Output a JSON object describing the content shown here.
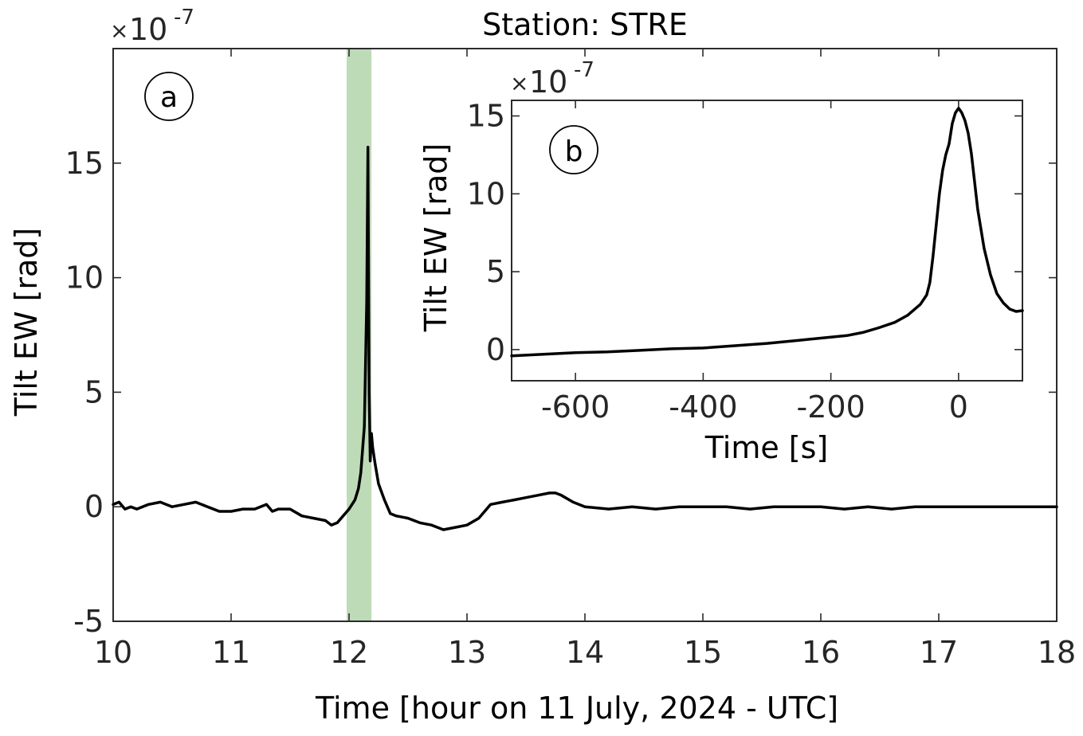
{
  "chart_data": [
    {
      "id": "a",
      "type": "line",
      "panel_label": "a",
      "title": "Station: STRE",
      "xlabel": "Time [hour on 11 July, 2024 - UTC]",
      "ylabel": "Tilt EW [rad]",
      "y_multiplier": {
        "base": "10",
        "exponent": "-7"
      },
      "xlim": [
        10,
        18
      ],
      "ylim": [
        -5,
        20
      ],
      "xticks": [
        10,
        11,
        12,
        13,
        14,
        15,
        16,
        17,
        18
      ],
      "yticks": [
        -5,
        0,
        5,
        10,
        15
      ],
      "grid": false,
      "highlight_band": {
        "x": [
          11.98,
          12.19
        ],
        "color": "#bddbb7"
      },
      "series": [
        {
          "color": "#000000",
          "x": [
            10.0,
            10.05,
            10.1,
            10.15,
            10.2,
            10.3,
            10.4,
            10.5,
            10.6,
            10.7,
            10.8,
            10.9,
            11.0,
            11.1,
            11.2,
            11.3,
            11.35,
            11.4,
            11.5,
            11.6,
            11.7,
            11.8,
            11.85,
            11.9,
            11.95,
            12.0,
            12.05,
            12.08,
            12.1,
            12.13,
            12.15,
            12.16,
            12.17,
            12.18,
            12.19,
            12.2,
            12.22,
            12.25,
            12.3,
            12.35,
            12.4,
            12.5,
            12.6,
            12.7,
            12.8,
            12.9,
            13.0,
            13.1,
            13.2,
            13.3,
            13.4,
            13.5,
            13.6,
            13.7,
            13.75,
            13.8,
            13.9,
            14.0,
            14.2,
            14.4,
            14.6,
            14.8,
            15.0,
            15.2,
            15.4,
            15.6,
            15.8,
            16.0,
            16.2,
            16.4,
            16.6,
            16.8,
            17.0,
            17.2,
            17.4,
            17.6,
            17.8,
            18.0
          ],
          "values": [
            0.1,
            0.2,
            -0.1,
            0.0,
            -0.1,
            0.1,
            0.2,
            0.0,
            0.1,
            0.2,
            0.0,
            -0.2,
            -0.2,
            -0.1,
            -0.1,
            0.1,
            -0.2,
            -0.1,
            -0.1,
            -0.4,
            -0.5,
            -0.6,
            -0.8,
            -0.7,
            -0.4,
            -0.1,
            0.3,
            0.8,
            1.5,
            3.5,
            9.0,
            15.7,
            5.0,
            2.0,
            3.2,
            2.6,
            1.9,
            1.0,
            0.3,
            -0.3,
            -0.4,
            -0.5,
            -0.7,
            -0.8,
            -1.0,
            -0.9,
            -0.8,
            -0.5,
            0.1,
            0.2,
            0.3,
            0.4,
            0.5,
            0.6,
            0.6,
            0.5,
            0.2,
            0.0,
            -0.1,
            0.0,
            -0.1,
            0.0,
            0.0,
            0.0,
            -0.1,
            0.0,
            0.0,
            0.0,
            -0.1,
            0.0,
            -0.1,
            0.0,
            0.0,
            0.0,
            0.0,
            0.0,
            0.0,
            0.0
          ]
        }
      ]
    },
    {
      "id": "b",
      "type": "line",
      "panel_label": "b",
      "title": "",
      "xlabel": "Time [s]",
      "ylabel": "Tilt EW [rad]",
      "y_multiplier": {
        "base": "10",
        "exponent": "-7"
      },
      "xlim": [
        -700,
        100
      ],
      "ylim": [
        -2,
        16
      ],
      "xticks": [
        -600,
        -400,
        -200,
        0
      ],
      "yticks": [
        0,
        5,
        10,
        15
      ],
      "grid": false,
      "series": [
        {
          "color": "#000000",
          "x": [
            -700,
            -650,
            -600,
            -550,
            -500,
            -450,
            -400,
            -350,
            -300,
            -250,
            -200,
            -175,
            -150,
            -125,
            -100,
            -80,
            -60,
            -50,
            -45,
            -40,
            -35,
            -30,
            -25,
            -20,
            -15,
            -10,
            -5,
            0,
            5,
            10,
            15,
            20,
            25,
            30,
            40,
            50,
            60,
            70,
            80,
            90,
            100
          ],
          "values": [
            -0.4,
            -0.3,
            -0.2,
            -0.15,
            -0.05,
            0.05,
            0.1,
            0.25,
            0.4,
            0.6,
            0.8,
            0.9,
            1.1,
            1.4,
            1.75,
            2.2,
            2.9,
            3.5,
            4.3,
            6.0,
            8.0,
            10.0,
            11.5,
            12.5,
            13.2,
            14.5,
            15.2,
            15.5,
            15.2,
            14.7,
            13.9,
            12.6,
            10.8,
            9.0,
            6.5,
            4.8,
            3.6,
            3.0,
            2.6,
            2.45,
            2.5
          ]
        }
      ]
    }
  ]
}
